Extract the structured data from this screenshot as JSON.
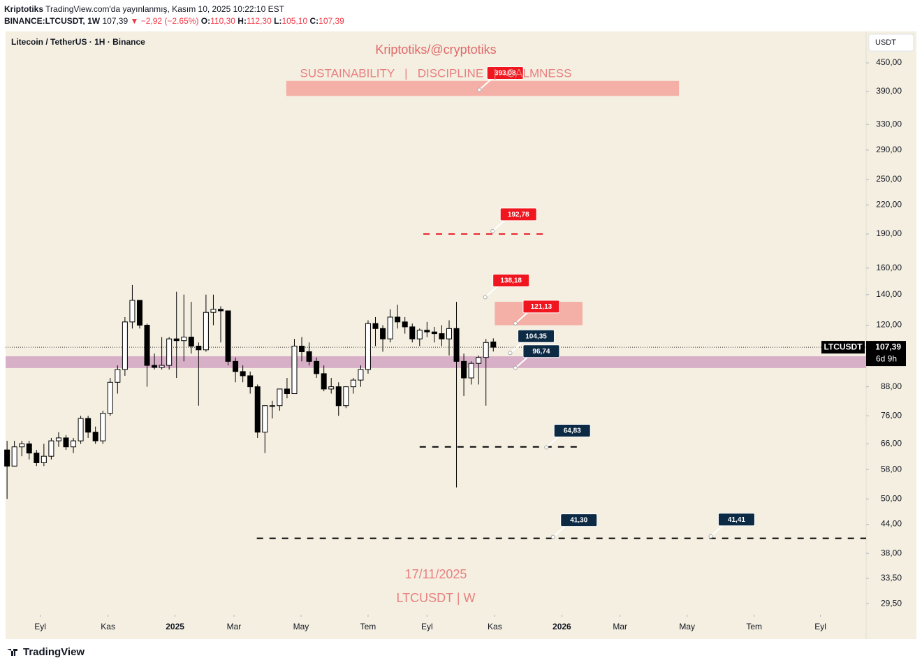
{
  "header": {
    "author": "Kriptotiks",
    "published": "TradingView.com'da yayınlanmış, Kasım 10, 2025 10:22:10 EST",
    "symbol": "BINANCE:LTCUSDT, 1W",
    "last": "107,39",
    "change": "▼ −2,92 (−2.65%)",
    "ohlc": [
      {
        "key": "O:",
        "value": "110,30"
      },
      {
        "key": "H:",
        "value": "112,30"
      },
      {
        "key": "L:",
        "value": "105,10"
      },
      {
        "key": "C:",
        "value": "107,39"
      }
    ]
  },
  "footer": {
    "brand": "TradingView"
  },
  "chart_data": {
    "type": "candlestick",
    "title": "Kriptotiks/@cryptotiks",
    "subtitle": "SUSTAINABILITY   |   DISCIPLINE   |   CALMNESS",
    "legend": "Litecoin / TetherUS · 1H · Binance",
    "date_note": "17/11/2025",
    "symbol_note": "LTCUSDT | W",
    "currency": "USDT",
    "log_scale": true,
    "up_color": "#ffffff",
    "down_color": "#000000",
    "ohlc": [
      [
        64,
        67,
        50,
        59
      ],
      [
        59,
        67,
        59,
        65
      ],
      [
        65,
        67,
        62,
        66
      ],
      [
        66,
        67,
        61,
        63
      ],
      [
        63,
        64,
        59,
        60
      ],
      [
        60,
        66,
        59,
        62
      ],
      [
        62,
        68,
        61,
        67
      ],
      [
        67,
        70,
        65,
        68
      ],
      [
        68,
        69,
        64,
        65
      ],
      [
        65,
        68,
        63,
        67
      ],
      [
        67,
        76,
        66,
        75
      ],
      [
        75,
        76,
        68,
        70
      ],
      [
        70,
        72,
        66,
        67
      ],
      [
        67,
        78,
        66,
        77
      ],
      [
        77,
        92,
        76,
        90
      ],
      [
        90,
        98,
        85,
        96
      ],
      [
        96,
        125,
        93,
        122
      ],
      [
        122,
        147,
        118,
        136
      ],
      [
        136,
        136,
        118,
        120
      ],
      [
        120,
        121,
        88,
        98
      ],
      [
        98,
        104,
        96,
        97
      ],
      [
        97,
        113,
        96,
        98
      ],
      [
        98,
        113,
        96,
        112
      ],
      [
        112,
        142,
        92,
        111
      ],
      [
        111,
        140,
        100,
        113
      ],
      [
        113,
        135,
        104,
        108
      ],
      [
        108,
        110,
        80,
        106
      ],
      [
        106,
        140,
        105,
        128
      ],
      [
        128,
        140,
        120,
        130
      ],
      [
        130,
        132,
        110,
        129
      ],
      [
        129,
        129,
        98,
        100
      ],
      [
        100,
        102,
        90,
        95
      ],
      [
        95,
        98,
        90,
        93
      ],
      [
        93,
        95,
        85,
        88
      ],
      [
        88,
        89,
        68,
        70
      ],
      [
        70,
        80,
        63,
        80
      ],
      [
        80,
        82,
        75,
        80
      ],
      [
        80,
        87,
        78,
        87
      ],
      [
        87,
        92,
        83,
        85
      ],
      [
        85,
        112,
        85,
        108
      ],
      [
        108,
        113,
        100,
        105
      ],
      [
        105,
        110,
        98,
        100
      ],
      [
        100,
        102,
        92,
        94
      ],
      [
        94,
        98,
        86,
        87
      ],
      [
        87,
        92,
        85,
        88
      ],
      [
        88,
        90,
        76,
        80
      ],
      [
        80,
        88,
        79,
        88
      ],
      [
        88,
        92,
        85,
        91
      ],
      [
        91,
        98,
        88,
        96
      ],
      [
        96,
        123,
        94,
        121
      ],
      [
        121,
        125,
        108,
        118
      ],
      [
        118,
        120,
        105,
        112
      ],
      [
        112,
        130,
        110,
        125
      ],
      [
        125,
        133,
        118,
        122
      ],
      [
        122,
        125,
        115,
        119
      ],
      [
        119,
        121,
        110,
        112
      ],
      [
        112,
        118,
        108,
        117
      ],
      [
        117,
        122,
        113,
        116
      ],
      [
        116,
        119,
        110,
        115
      ],
      [
        115,
        120,
        108,
        112
      ],
      [
        112,
        123,
        103,
        118
      ],
      [
        118,
        135,
        53,
        100
      ],
      [
        100,
        104,
        84,
        92
      ],
      [
        92,
        100,
        89,
        99
      ],
      [
        99,
        103,
        89,
        102
      ],
      [
        102,
        112,
        80,
        110
      ],
      [
        110.3,
        112.3,
        105.1,
        107.39
      ]
    ],
    "xlim": [
      -0.2,
      116.6
    ],
    "xticks": [
      {
        "value": 4.5,
        "label": "Eyl"
      },
      {
        "value": 13.7,
        "label": "Kas"
      },
      {
        "value": 22.8,
        "label": "2025"
      },
      {
        "value": 30.8,
        "label": "Mar"
      },
      {
        "value": 39.9,
        "label": "May"
      },
      {
        "value": 49,
        "label": "Tem"
      },
      {
        "value": 57,
        "label": "Eyl"
      },
      {
        "value": 66.2,
        "label": "Kas"
      },
      {
        "value": 75.3,
        "label": "2026"
      },
      {
        "value": 83.2,
        "label": "Mar"
      },
      {
        "value": 92.3,
        "label": "May"
      },
      {
        "value": 101.4,
        "label": "Tem"
      },
      {
        "value": 110.4,
        "label": "Eyl"
      }
    ],
    "ylim": [
      27.9,
      527.3
    ],
    "yticks": [
      {
        "value": 450,
        "label": "450,00"
      },
      {
        "value": 390,
        "label": "390,00"
      },
      {
        "value": 330,
        "label": "330,00"
      },
      {
        "value": 290,
        "label": "290,00"
      },
      {
        "value": 250,
        "label": "250,00"
      },
      {
        "value": 220,
        "label": "220,00"
      },
      {
        "value": 190,
        "label": "190,00"
      },
      {
        "value": 160,
        "label": "160,00"
      },
      {
        "value": 140,
        "label": "140,00"
      },
      {
        "value": 120,
        "label": "120,00"
      },
      {
        "value": 88,
        "label": "88,00"
      },
      {
        "value": 76,
        "label": "76,00"
      },
      {
        "value": 66,
        "label": "66,00"
      },
      {
        "value": 58,
        "label": "58,00"
      },
      {
        "value": 50,
        "label": "50,00"
      },
      {
        "value": 44,
        "label": "44,00"
      },
      {
        "value": 38,
        "label": "38,00"
      },
      {
        "value": 33.5,
        "label": "33,50"
      },
      {
        "value": 29.5,
        "label": "29,50"
      }
    ],
    "zones": [
      {
        "x": [
          37.9,
          91.2
        ],
        "y": [
          381,
          411
        ],
        "color": "#f4a9a0"
      },
      {
        "x": [
          66.2,
          78.1
        ],
        "y": [
          120,
          135
        ],
        "color": "#f4a9a0"
      },
      {
        "x": [
          -0.2,
          116.6
        ],
        "y": [
          96.7,
          102.6
        ],
        "color": "#d4a8c4"
      }
    ],
    "levels": [
      {
        "value": 190,
        "x": [
          56.5,
          72.8
        ],
        "color": "#e8262f"
      },
      {
        "value": 65,
        "x": [
          56,
          77.8
        ],
        "color": "#000000"
      },
      {
        "value": 41,
        "x": [
          33.9,
          116.6
        ],
        "color": "#000000"
      }
    ],
    "annotations": [
      {
        "x": 64.1,
        "value": 393.08,
        "label": "393,08",
        "color": "#f0161f"
      },
      {
        "x": 65.9,
        "value": 192.78,
        "label": "192,78",
        "color": "#f0161f"
      },
      {
        "x": 64.9,
        "value": 138.18,
        "label": "138,18",
        "color": "#f0161f"
      },
      {
        "x": 69,
        "value": 121.13,
        "label": "121,13",
        "color": "#f0161f"
      },
      {
        "x": 68.3,
        "value": 104.35,
        "label": "104,35",
        "color": "#0c2a44"
      },
      {
        "x": 69,
        "value": 96.74,
        "label": "96,74",
        "color": "#0c2a44"
      },
      {
        "x": 73.2,
        "value": 64.83,
        "label": "64,83",
        "color": "#0c2a44"
      },
      {
        "x": 74.1,
        "value": 41.3,
        "label": "41,30",
        "color": "#0c2a44"
      },
      {
        "x": 95.5,
        "value": 41.41,
        "label": "41,41",
        "color": "#0c2a44"
      }
    ],
    "price_label": {
      "value": 107.39,
      "label": "107,39"
    },
    "symbol_label": "LTCUSDT",
    "countdown": "6d 9h"
  }
}
